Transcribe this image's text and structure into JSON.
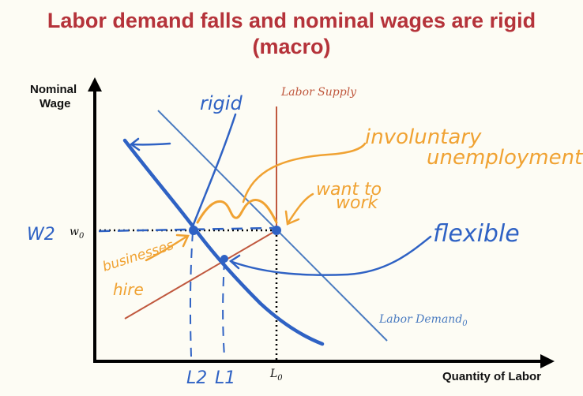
{
  "title": {
    "line1": "Labor demand falls and nominal wages are rigid",
    "line2": "(macro)"
  },
  "axes": {
    "y_label_line1": "Nominal",
    "y_label_line2": "Wage",
    "x_label": "Quantity of Labor"
  },
  "curves": {
    "supply_label": "Labor Supply",
    "demand_label": "Labor Demand",
    "demand_subscript": "0"
  },
  "ticks": {
    "w0_main": "w",
    "w0_sub": "0",
    "L0_main": "L",
    "L0_sub": "0"
  },
  "annotations": {
    "rigid": "rigid",
    "involuntary_line1": "involuntary",
    "involuntary_line2": "unemployment",
    "want_to_line1": "want to",
    "want_to_line2": "work",
    "flexible": "flexible",
    "businesses_line1": "businesses",
    "businesses_line2": "hire",
    "w2": "W2",
    "l2": "L2",
    "l1": "L1"
  },
  "colors": {
    "title": "#b5333a",
    "supply": "#c0583e",
    "demand": "#4a7bc0",
    "ink_blue": "#2f62c4",
    "ink_orange": "#f0a232"
  }
}
